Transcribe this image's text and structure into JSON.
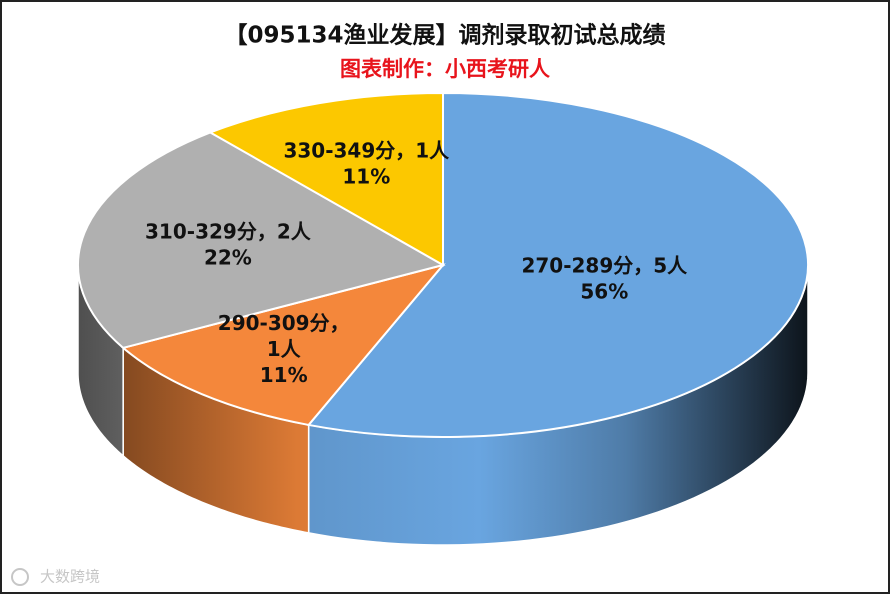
{
  "chart_data": {
    "type": "pie3d",
    "title": "【095134渔业发展】调剂录取初试总成绩",
    "subtitle": "图表制作：小西考研人",
    "categories": [
      "270-289分",
      "290-309分",
      "310-329分",
      "330-349分"
    ],
    "values": [
      56,
      11,
      22,
      11
    ],
    "value_labels": [
      "56%",
      "11%",
      "22%",
      "11%"
    ],
    "counts": [
      5,
      1,
      2,
      1
    ],
    "count_labels": [
      "5人",
      "1人",
      "2人",
      "1人"
    ],
    "separator": "，",
    "colors": [
      "#69a5e0",
      "#f4873b",
      "#b0b0b0",
      "#fcc800"
    ],
    "watermark": "大数跨境"
  }
}
